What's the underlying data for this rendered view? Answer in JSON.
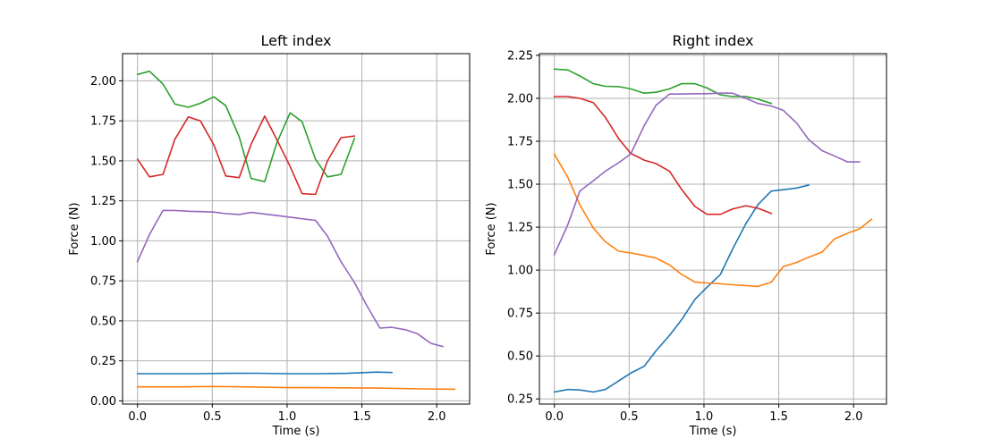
{
  "chart_data": [
    {
      "type": "line",
      "title": "Left index",
      "xlabel": "Time (s)",
      "ylabel": "Force (N)",
      "xlim": [
        -0.1,
        2.22
      ],
      "ylim": [
        -0.02,
        2.17
      ],
      "xticks": [
        0.0,
        0.5,
        1.0,
        1.5,
        2.0
      ],
      "xtick_labels": [
        "0.0",
        "0.5",
        "1.0",
        "1.5",
        "2.0"
      ],
      "yticks": [
        0.0,
        0.25,
        0.5,
        0.75,
        1.0,
        1.25,
        1.5,
        1.75,
        2.0
      ],
      "ytick_labels": [
        "0.00",
        "0.25",
        "0.50",
        "0.75",
        "1.00",
        "1.25",
        "1.50",
        "1.75",
        "2.00"
      ],
      "grid": true,
      "series": [
        {
          "color": "#1f77b4",
          "x": [
            0.0,
            0.2,
            0.4,
            0.6,
            0.8,
            1.0,
            1.2,
            1.4,
            1.6,
            1.7
          ],
          "y": [
            0.17,
            0.17,
            0.17,
            0.172,
            0.173,
            0.17,
            0.17,
            0.172,
            0.18,
            0.177
          ]
        },
        {
          "color": "#ff7f0e",
          "x": [
            0.0,
            0.3,
            0.5,
            0.7,
            1.0,
            1.3,
            1.6,
            1.9,
            2.12
          ],
          "y": [
            0.088,
            0.088,
            0.09,
            0.088,
            0.083,
            0.082,
            0.08,
            0.075,
            0.073
          ]
        },
        {
          "color": "#2ca02c",
          "x": [
            0.0,
            0.08,
            0.17,
            0.25,
            0.34,
            0.42,
            0.51,
            0.59,
            0.68,
            0.76,
            0.85,
            0.93,
            1.02,
            1.1,
            1.19,
            1.27,
            1.36,
            1.45
          ],
          "y": [
            2.04,
            2.06,
            1.98,
            1.855,
            1.835,
            1.86,
            1.9,
            1.845,
            1.65,
            1.39,
            1.37,
            1.61,
            1.8,
            1.745,
            1.51,
            1.4,
            1.415,
            1.64
          ]
        },
        {
          "color": "#d62728",
          "x": [
            0.0,
            0.08,
            0.17,
            0.25,
            0.34,
            0.42,
            0.51,
            0.59,
            0.68,
            0.76,
            0.85,
            0.93,
            1.02,
            1.1,
            1.19,
            1.27,
            1.36,
            1.45
          ],
          "y": [
            1.51,
            1.4,
            1.415,
            1.635,
            1.775,
            1.75,
            1.6,
            1.405,
            1.395,
            1.605,
            1.78,
            1.635,
            1.465,
            1.295,
            1.29,
            1.5,
            1.645,
            1.655
          ]
        },
        {
          "color": "#9467bd",
          "x": [
            0.0,
            0.08,
            0.17,
            0.25,
            0.34,
            0.42,
            0.51,
            0.59,
            0.68,
            0.76,
            0.85,
            0.93,
            1.02,
            1.1,
            1.19,
            1.27,
            1.36,
            1.45,
            1.53,
            1.62,
            1.7,
            1.79,
            1.87,
            1.96,
            2.04
          ],
          "y": [
            0.87,
            1.04,
            1.19,
            1.19,
            1.185,
            1.183,
            1.18,
            1.17,
            1.165,
            1.178,
            1.168,
            1.158,
            1.148,
            1.138,
            1.128,
            1.03,
            0.87,
            0.74,
            0.6,
            0.455,
            0.46,
            0.445,
            0.42,
            0.36,
            0.34
          ]
        }
      ]
    },
    {
      "type": "line",
      "title": "Right index",
      "xlabel": "Time (s)",
      "ylabel": "Force (N)",
      "xlim": [
        -0.1,
        2.22
      ],
      "ylim": [
        0.22,
        2.26
      ],
      "xticks": [
        0.0,
        0.5,
        1.0,
        1.5,
        2.0
      ],
      "xtick_labels": [
        "0.0",
        "0.5",
        "1.0",
        "1.5",
        "2.0"
      ],
      "yticks": [
        0.25,
        0.5,
        0.75,
        1.0,
        1.25,
        1.5,
        1.75,
        2.0,
        2.25
      ],
      "ytick_labels": [
        "0.25",
        "0.50",
        "0.75",
        "1.00",
        "1.25",
        "1.50",
        "1.75",
        "2.00",
        "2.25"
      ],
      "grid": true,
      "series": [
        {
          "color": "#1f77b4",
          "x": [
            0.0,
            0.09,
            0.17,
            0.26,
            0.34,
            0.43,
            0.51,
            0.6,
            0.68,
            0.77,
            0.85,
            0.94,
            1.02,
            1.11,
            1.19,
            1.28,
            1.36,
            1.45,
            1.53,
            1.62,
            1.7
          ],
          "y": [
            0.29,
            0.305,
            0.302,
            0.29,
            0.305,
            0.355,
            0.4,
            0.44,
            0.53,
            0.62,
            0.71,
            0.83,
            0.9,
            0.975,
            1.12,
            1.27,
            1.38,
            1.46,
            1.468,
            1.478,
            1.495
          ]
        },
        {
          "color": "#ff7f0e",
          "x": [
            0.0,
            0.09,
            0.17,
            0.26,
            0.34,
            0.43,
            0.51,
            0.6,
            0.68,
            0.77,
            0.85,
            0.94,
            1.02,
            1.11,
            1.19,
            1.28,
            1.36,
            1.45,
            1.53,
            1.62,
            1.7,
            1.79,
            1.87,
            1.96,
            2.04,
            2.12
          ],
          "y": [
            1.675,
            1.54,
            1.38,
            1.245,
            1.165,
            1.11,
            1.1,
            1.085,
            1.07,
            1.03,
            0.975,
            0.93,
            0.925,
            0.92,
            0.915,
            0.91,
            0.905,
            0.93,
            1.02,
            1.045,
            1.075,
            1.105,
            1.18,
            1.215,
            1.24,
            1.295
          ]
        },
        {
          "color": "#2ca02c",
          "x": [
            0.0,
            0.09,
            0.17,
            0.26,
            0.34,
            0.43,
            0.51,
            0.6,
            0.68,
            0.77,
            0.85,
            0.94,
            1.02,
            1.11,
            1.19,
            1.28,
            1.36,
            1.45
          ],
          "y": [
            2.17,
            2.165,
            2.13,
            2.085,
            2.07,
            2.068,
            2.055,
            2.03,
            2.035,
            2.055,
            2.085,
            2.085,
            2.06,
            2.02,
            2.01,
            2.01,
            1.995,
            1.97
          ]
        },
        {
          "color": "#d62728",
          "x": [
            0.0,
            0.09,
            0.17,
            0.26,
            0.34,
            0.43,
            0.51,
            0.6,
            0.68,
            0.77,
            0.85,
            0.94,
            1.02,
            1.11,
            1.19,
            1.28,
            1.36,
            1.45
          ],
          "y": [
            2.01,
            2.01,
            2.0,
            1.975,
            1.89,
            1.765,
            1.68,
            1.64,
            1.62,
            1.575,
            1.47,
            1.37,
            1.325,
            1.325,
            1.355,
            1.375,
            1.36,
            1.33
          ]
        },
        {
          "color": "#9467bd",
          "x": [
            0.0,
            0.09,
            0.17,
            0.26,
            0.34,
            0.43,
            0.51,
            0.6,
            0.68,
            0.77,
            0.85,
            0.94,
            1.02,
            1.11,
            1.19,
            1.28,
            1.36,
            1.45,
            1.53,
            1.62,
            1.7,
            1.79,
            1.87,
            1.96,
            2.04
          ],
          "y": [
            1.09,
            1.265,
            1.46,
            1.52,
            1.575,
            1.625,
            1.675,
            1.84,
            1.96,
            2.025,
            2.025,
            2.027,
            2.027,
            2.03,
            2.03,
            2.0,
            1.97,
            1.955,
            1.93,
            1.855,
            1.76,
            1.695,
            1.665,
            1.63,
            1.63
          ]
        }
      ]
    }
  ]
}
